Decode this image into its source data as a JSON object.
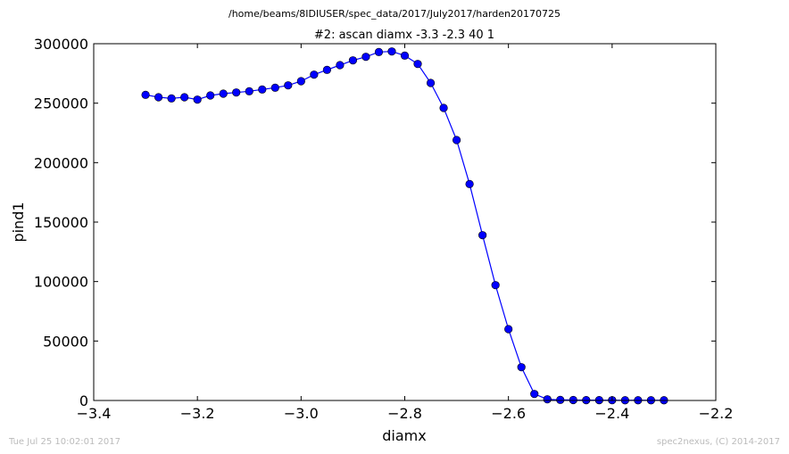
{
  "chart_data": {
    "type": "line",
    "supertitle": "/home/beams/8IDIUSER/spec_data/2017/July2017/harden20170725",
    "title": "#2: ascan  diamx -3.3 -2.3  40 1",
    "xlabel": "diamx",
    "ylabel": "pind1",
    "xlim": [
      -3.4,
      -2.2
    ],
    "ylim": [
      0,
      300000
    ],
    "x_ticks": [
      -3.4,
      -3.2,
      -3.0,
      -2.8,
      -2.6,
      -2.4,
      -2.2
    ],
    "x_tick_labels": [
      "−3.4",
      "−3.2",
      "−3.0",
      "−2.8",
      "−2.6",
      "−2.4",
      "−2.2"
    ],
    "y_ticks": [
      0,
      50000,
      100000,
      150000,
      200000,
      250000,
      300000
    ],
    "y_tick_labels": [
      "0",
      "50000",
      "100000",
      "150000",
      "200000",
      "250000",
      "300000"
    ],
    "grid": false,
    "series": [
      {
        "color": "#0000ff",
        "marker": "circle",
        "x": [
          -3.3,
          -3.275,
          -3.25,
          -3.225,
          -3.2,
          -3.175,
          -3.15,
          -3.125,
          -3.1,
          -3.075,
          -3.05,
          -3.025,
          -3.0,
          -2.975,
          -2.95,
          -2.925,
          -2.9,
          -2.875,
          -2.85,
          -2.825,
          -2.8,
          -2.775,
          -2.75,
          -2.725,
          -2.7,
          -2.675,
          -2.65,
          -2.625,
          -2.6,
          -2.575,
          -2.55,
          -2.525,
          -2.5,
          -2.475,
          -2.45,
          -2.425,
          -2.4,
          -2.375,
          -2.35,
          -2.325,
          -2.3
        ],
        "y": [
          257000,
          255000,
          254000,
          255000,
          253000,
          256500,
          258000,
          259000,
          260000,
          261500,
          263000,
          265000,
          268500,
          274000,
          278000,
          282000,
          286000,
          289000,
          293000,
          293500,
          290000,
          283000,
          267000,
          246000,
          219000,
          182000,
          139000,
          97000,
          60000,
          28000,
          5500,
          1000,
          500,
          400,
          300,
          300,
          250,
          200,
          200,
          200,
          200
        ]
      }
    ]
  },
  "footer": {
    "left": "Tue Jul 25 10:02:01 2017",
    "right": "spec2nexus, (C) 2014-2017"
  }
}
